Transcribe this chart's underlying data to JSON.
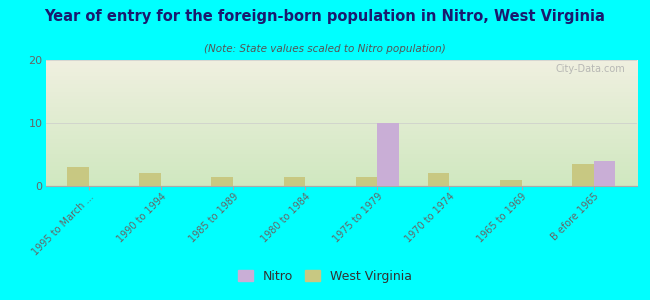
{
  "title": "Year of entry for the foreign-born population in Nitro, West Virginia",
  "subtitle": "(Note: State values scaled to Nitro population)",
  "categories": [
    "1995 to March ...",
    "1990 to 1994",
    "1985 to 1989",
    "1980 to 1984",
    "1975 to 1979",
    "1970 to 1974",
    "1965 to 1969",
    "B efore 1965"
  ],
  "nitro_values": [
    0,
    0,
    0,
    0,
    10,
    0,
    0,
    4
  ],
  "wv_values": [
    3,
    2,
    1.5,
    1.5,
    1.5,
    2,
    1,
    3.5
  ],
  "nitro_color": "#c9aed6",
  "wv_color": "#c8c882",
  "ylim": [
    0,
    20
  ],
  "yticks": [
    0,
    10,
    20
  ],
  "bg_top": "#f0f0e0",
  "bg_bottom": "#d0e8c0",
  "outer_bg": "#00ffff",
  "bar_width": 0.3,
  "watermark": "City-Data.com",
  "title_color": "#1a1a6e",
  "subtitle_color": "#555555",
  "tick_color": "#666666"
}
